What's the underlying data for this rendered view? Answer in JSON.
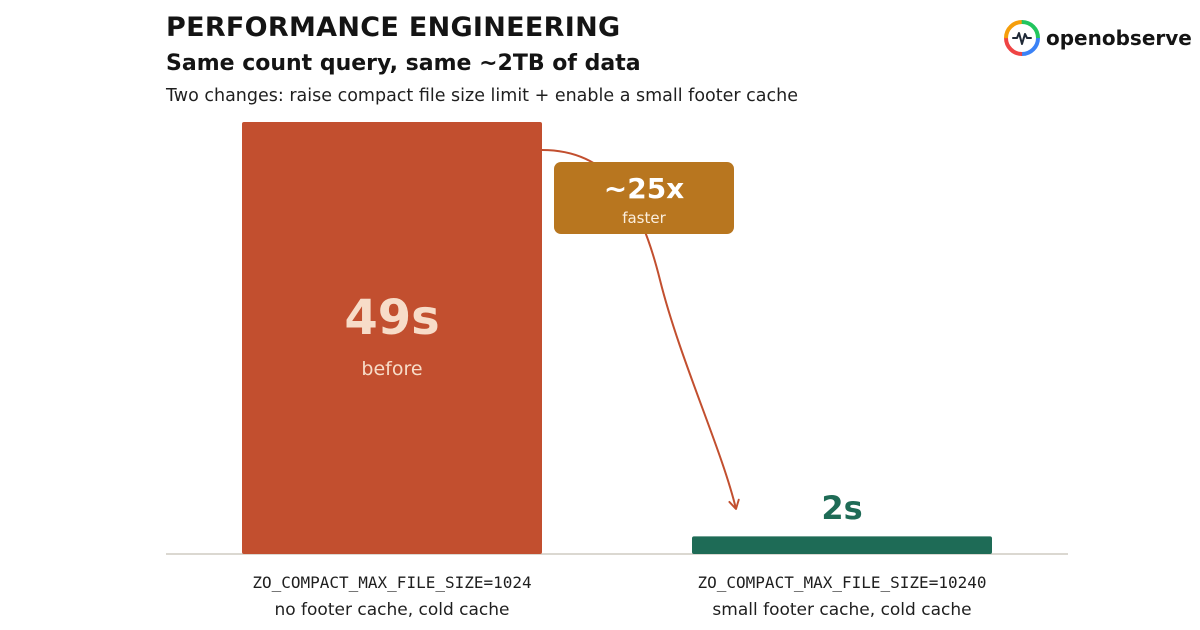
{
  "header": {
    "title": "PERFORMANCE ENGINEERING",
    "subtitle": "Same count query, same ~2TB of data",
    "description": "Two changes: raise compact file size limit + enable a small footer cache"
  },
  "brand": {
    "name": "openobserve",
    "logo_icon": "openobserve-logo-icon"
  },
  "colors": {
    "before_bar": "#c24f2f",
    "after_bar": "#1e6b56",
    "badge": "#b8761f",
    "arrow": "#c24f2f",
    "before_value_text": "#f7dcc8",
    "after_value_text": "#1e6b56"
  },
  "chart_data": {
    "type": "bar",
    "title": "Same count query, same ~2TB of data",
    "categories": [
      {
        "config": "ZO_COMPACT_MAX_FILE_SIZE=1024",
        "description": "no footer cache, cold cache"
      },
      {
        "config": "ZO_COMPACT_MAX_FILE_SIZE=10240",
        "description": "small footer cache, cold cache"
      }
    ],
    "values": [
      49,
      2
    ],
    "unit": "s",
    "value_labels": [
      "49s",
      "2s"
    ],
    "sublabels": [
      "before",
      ""
    ],
    "annotation": {
      "value": "~25x",
      "label": "faster"
    },
    "ylim": [
      0,
      49
    ],
    "grid": false,
    "legend": "none"
  }
}
